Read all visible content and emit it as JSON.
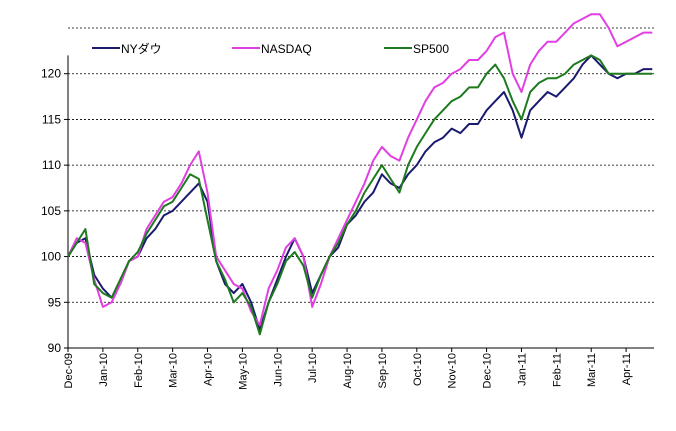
{
  "chart_data": {
    "type": "line",
    "title": "",
    "xlabel": "",
    "ylabel": "",
    "ylim": [
      90,
      125
    ],
    "y_ticks": [
      90,
      95,
      100,
      105,
      110,
      115,
      120
    ],
    "x_tick_labels": [
      "Dec-09",
      "Jan-10",
      "Feb-10",
      "Mar-10",
      "Apr-10",
      "May-10",
      "Jun-10",
      "Jul-10",
      "Aug-10",
      "Sep-10",
      "Oct-10",
      "Nov-10",
      "Dec-10",
      "Jan-11",
      "Feb-11",
      "Mar-11",
      "Apr-11"
    ],
    "grid": "horizontal dotted",
    "legend_position": "top",
    "x": [
      0,
      0.25,
      0.5,
      0.75,
      1,
      1.25,
      1.5,
      1.75,
      2,
      2.25,
      2.5,
      2.75,
      3,
      3.25,
      3.5,
      3.75,
      4,
      4.25,
      4.5,
      4.75,
      5,
      5.25,
      5.5,
      5.75,
      6,
      6.25,
      6.5,
      6.75,
      7,
      7.25,
      7.5,
      7.75,
      8,
      8.25,
      8.5,
      8.75,
      9,
      9.25,
      9.5,
      9.75,
      10,
      10.25,
      10.5,
      10.75,
      11,
      11.25,
      11.5,
      11.75,
      12,
      12.25,
      12.5,
      12.75,
      13,
      13.25,
      13.5,
      13.75,
      14,
      14.25,
      14.5,
      14.75,
      15,
      15.25,
      15.5,
      15.75,
      16,
      16.25,
      16.5,
      16.75
    ],
    "series": [
      {
        "name": "NYダウ",
        "color": "#1a1a6e",
        "values": [
          100,
          101.5,
          102,
          98,
          96.5,
          95.5,
          97,
          99.5,
          100,
          102,
          103,
          104.5,
          105,
          106,
          107,
          108,
          106,
          99.5,
          97,
          96,
          97,
          95,
          92,
          95,
          97.5,
          100,
          102,
          100,
          96,
          98,
          100,
          101,
          103.5,
          104.5,
          106,
          107,
          109,
          108,
          107.5,
          109,
          110,
          111.5,
          112.5,
          113,
          114,
          113.5,
          114.5,
          114.5,
          116,
          117,
          118,
          116,
          113,
          116,
          117,
          118,
          117.5,
          118.5,
          119.5,
          121,
          122,
          121,
          120,
          119.5,
          120,
          120,
          120.5,
          120.5
        ]
      },
      {
        "name": "NASDAQ",
        "color": "#e23fe2",
        "values": [
          100,
          102,
          101.5,
          97.5,
          94.5,
          95,
          97,
          99.5,
          100,
          103,
          104.5,
          106,
          106.5,
          108,
          110,
          111.5,
          107,
          100,
          98.5,
          97,
          96.5,
          94,
          92.5,
          96.5,
          98.5,
          101,
          102,
          100,
          94.5,
          97,
          100,
          102,
          104,
          106,
          108,
          110.5,
          112,
          111,
          110.5,
          113,
          115,
          117,
          118.5,
          119,
          120,
          120.5,
          121.5,
          121.5,
          122.5,
          124,
          124.5,
          120,
          118,
          121,
          122.5,
          123.5,
          123.5,
          124.5,
          125.5,
          126,
          126.5,
          126.5,
          125,
          123,
          123.5,
          124,
          124.5,
          124.5
        ]
      },
      {
        "name": "SP500",
        "color": "#1e7a1e",
        "values": [
          100,
          101.5,
          103,
          97,
          96,
          95.5,
          97.5,
          99.5,
          100.5,
          102.5,
          104,
          105.5,
          106,
          107.5,
          109,
          108.5,
          104,
          99.5,
          97.5,
          95,
          96,
          94.5,
          91.5,
          95,
          97,
          99.5,
          100.5,
          99,
          95.5,
          98,
          100,
          101.5,
          103.5,
          105,
          107,
          108.5,
          110,
          108.5,
          107,
          110,
          112,
          113.5,
          115,
          116,
          117,
          117.5,
          118.5,
          118.5,
          120,
          121,
          119.5,
          117,
          115,
          118,
          119,
          119.5,
          119.5,
          120,
          121,
          121.5,
          122,
          121.5,
          120,
          120,
          120,
          120,
          120,
          120
        ]
      }
    ]
  }
}
